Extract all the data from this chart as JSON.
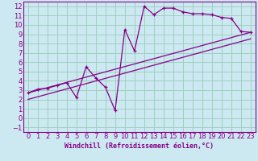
{
  "background_color": "#cce8f0",
  "grid_color": "#99ccbb",
  "line_color": "#880088",
  "marker": "+",
  "xlabel": "Windchill (Refroidissement éolien,°C)",
  "xlim": [
    -0.5,
    23.5
  ],
  "ylim": [
    -1.5,
    12.5
  ],
  "xticks": [
    0,
    1,
    2,
    3,
    4,
    5,
    6,
    7,
    8,
    9,
    10,
    11,
    12,
    13,
    14,
    15,
    16,
    17,
    18,
    19,
    20,
    21,
    22,
    23
  ],
  "yticks": [
    -1,
    0,
    1,
    2,
    3,
    4,
    5,
    6,
    7,
    8,
    9,
    10,
    11,
    12
  ],
  "line1_x": [
    0,
    1,
    2,
    3,
    4,
    5,
    6,
    7,
    8,
    9,
    10,
    11,
    12,
    13,
    14,
    15,
    16,
    17,
    18,
    19,
    20,
    21,
    22,
    23
  ],
  "line1_y": [
    2.7,
    3.1,
    3.2,
    3.5,
    3.8,
    2.2,
    5.5,
    4.3,
    3.3,
    0.8,
    9.5,
    7.2,
    12.0,
    11.1,
    11.8,
    11.8,
    11.4,
    11.2,
    11.2,
    11.1,
    10.8,
    10.7,
    9.3,
    9.2
  ],
  "line2_x": [
    0,
    23
  ],
  "line2_y": [
    2.7,
    9.2
  ],
  "line3_x": [
    0,
    23
  ],
  "line3_y": [
    2.0,
    8.5
  ],
  "tick_fontsize": 6,
  "xlabel_fontsize": 6
}
